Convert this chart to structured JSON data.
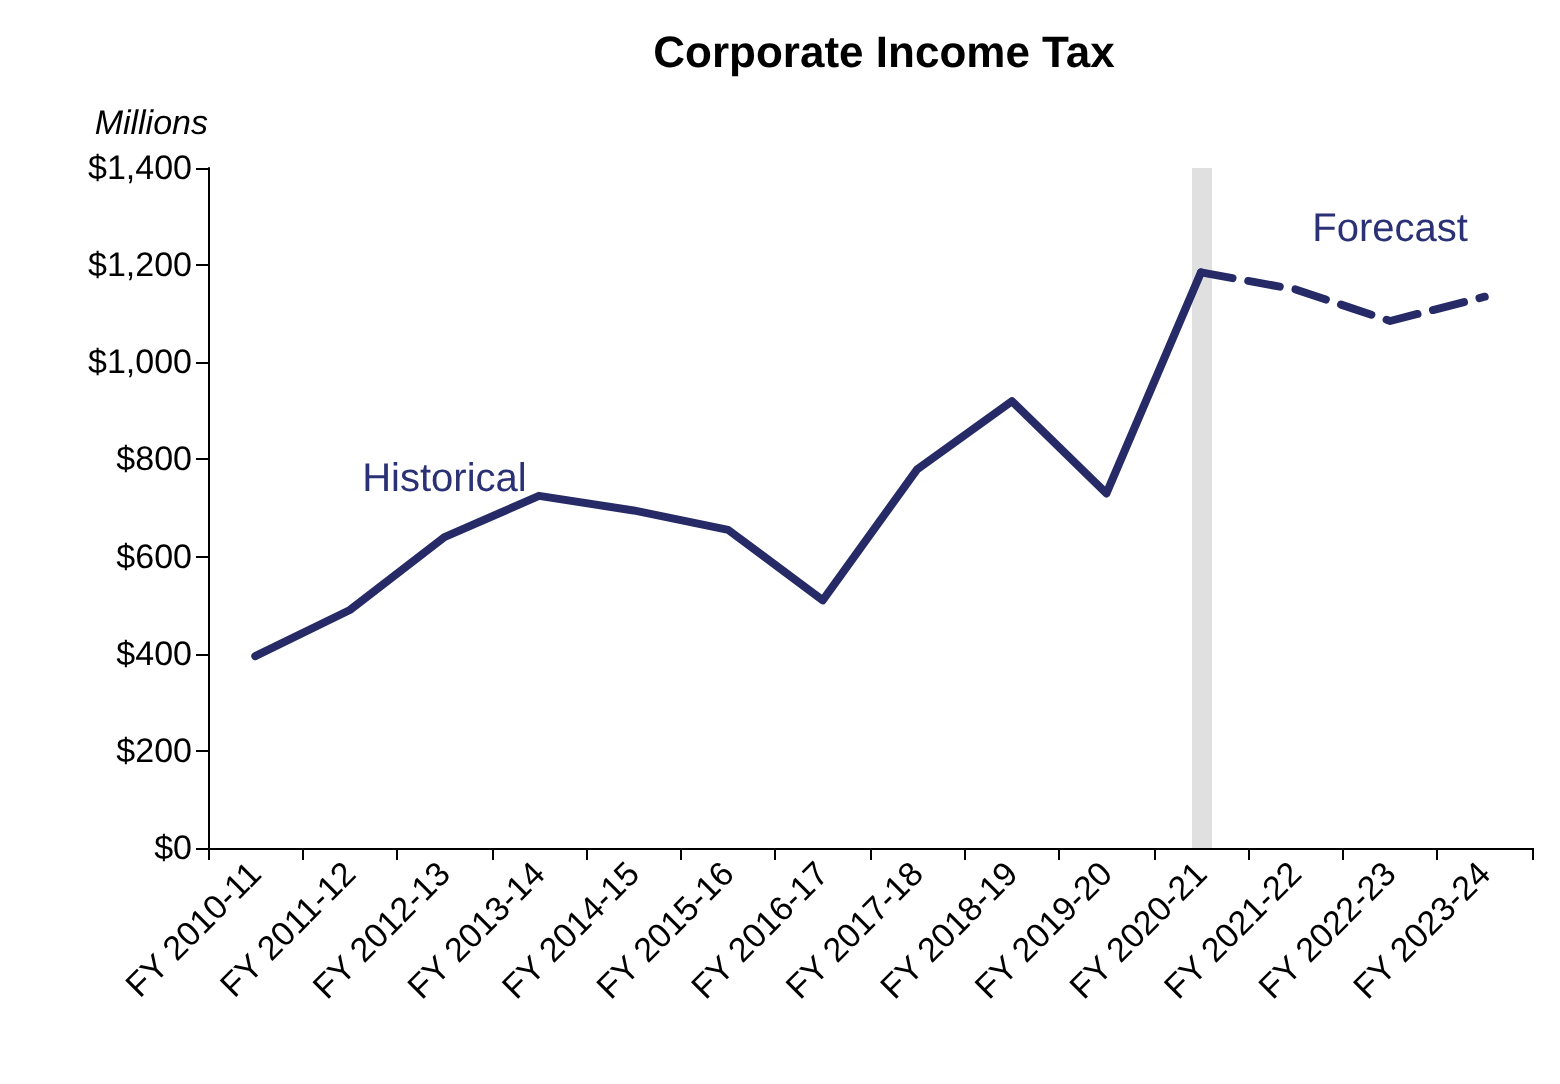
{
  "chart_data": {
    "type": "line",
    "title": "Corporate Income Tax",
    "ylabel": "Millions",
    "categories": [
      "FY 2010-11",
      "FY 2011-12",
      "FY 2012-13",
      "FY 2013-14",
      "FY 2014-15",
      "FY 2015-16",
      "FY 2016-17",
      "FY 2017-18",
      "FY 2018-19",
      "FY 2019-20",
      "FY 2020-21",
      "FY 2021-22",
      "FY 2022-23",
      "FY 2023-24"
    ],
    "series": [
      {
        "name": "Historical",
        "color": "#262a66",
        "line_style": "solid",
        "values": [
          395,
          490,
          640,
          725,
          695,
          655,
          510,
          780,
          920,
          730,
          1185,
          null,
          null,
          null
        ]
      },
      {
        "name": "Forecast",
        "color": "#262a66",
        "line_style": "dashed",
        "values": [
          null,
          null,
          null,
          null,
          null,
          null,
          null,
          null,
          null,
          null,
          1185,
          1150,
          1085,
          1135
        ]
      }
    ],
    "ylim": [
      0,
      1400
    ],
    "yticks": [
      {
        "value": 0,
        "label": "$0"
      },
      {
        "value": 200,
        "label": "$200"
      },
      {
        "value": 400,
        "label": "$400"
      },
      {
        "value": 600,
        "label": "$600"
      },
      {
        "value": 800,
        "label": "$800"
      },
      {
        "value": 1000,
        "label": "$1,000"
      },
      {
        "value": 1200,
        "label": "$1,200"
      },
      {
        "value": 1400,
        "label": "$1,400"
      }
    ],
    "ref_lines": [
      {
        "axis": "x",
        "value": "FY 2020-21",
        "color": "#e0e0e0"
      }
    ],
    "grid": false,
    "legend": false,
    "marker": "none"
  }
}
